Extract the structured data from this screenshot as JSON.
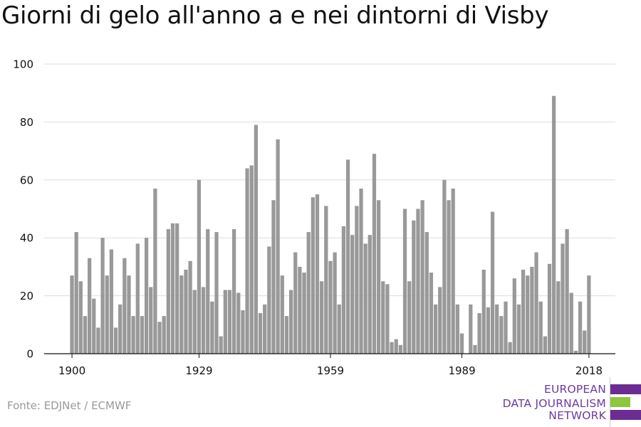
{
  "title": "Giorni di gelo all'anno a e nei dintorni di Visby",
  "source": "Fonte: EDJNet / ECMWF",
  "logo": {
    "lines": [
      "EUROPEAN",
      "DATA JOURNALISM",
      "NETWORK"
    ],
    "colors": [
      "#6c2c91",
      "#8dc63f",
      "#6c2c91"
    ]
  },
  "colors": {
    "bar": "#999999",
    "grid": "#dddddd",
    "axis": "#111111",
    "text": "#111111"
  },
  "chart_data": {
    "type": "bar",
    "title": "Giorni di gelo all'anno a e nei dintorni di Visby",
    "xlabel": "",
    "ylabel": "",
    "ylim": [
      0,
      100
    ],
    "yticks": [
      0,
      20,
      40,
      60,
      80,
      100
    ],
    "xticks": [
      1900,
      1929,
      1959,
      1989,
      2018
    ],
    "xlim": [
      1899.5,
      2018.5
    ],
    "grid": true,
    "x": [
      1900,
      1901,
      1902,
      1903,
      1904,
      1905,
      1906,
      1907,
      1908,
      1909,
      1910,
      1911,
      1912,
      1913,
      1914,
      1915,
      1916,
      1917,
      1918,
      1919,
      1920,
      1921,
      1922,
      1923,
      1924,
      1925,
      1926,
      1927,
      1928,
      1929,
      1930,
      1931,
      1932,
      1933,
      1934,
      1935,
      1936,
      1937,
      1938,
      1939,
      1940,
      1941,
      1942,
      1943,
      1944,
      1945,
      1946,
      1947,
      1948,
      1949,
      1950,
      1951,
      1952,
      1953,
      1954,
      1955,
      1956,
      1957,
      1958,
      1959,
      1960,
      1961,
      1962,
      1963,
      1964,
      1965,
      1966,
      1967,
      1968,
      1969,
      1970,
      1971,
      1972,
      1973,
      1974,
      1975,
      1976,
      1977,
      1978,
      1979,
      1980,
      1981,
      1982,
      1983,
      1984,
      1985,
      1986,
      1987,
      1988,
      1989,
      1990,
      1991,
      1992,
      1993,
      1994,
      1995,
      1996,
      1997,
      1998,
      1999,
      2000,
      2001,
      2002,
      2003,
      2004,
      2005,
      2006,
      2007,
      2008,
      2009,
      2010,
      2011,
      2012,
      2013,
      2014,
      2015,
      2016,
      2017,
      2018
    ],
    "values": [
      27,
      42,
      25,
      13,
      33,
      19,
      9,
      40,
      27,
      36,
      9,
      17,
      33,
      27,
      13,
      38,
      13,
      40,
      23,
      57,
      11,
      13,
      43,
      45,
      45,
      27,
      29,
      32,
      22,
      60,
      23,
      43,
      18,
      42,
      6,
      22,
      22,
      43,
      21,
      15,
      64,
      65,
      79,
      14,
      17,
      37,
      53,
      74,
      27,
      13,
      22,
      35,
      30,
      28,
      42,
      54,
      55,
      25,
      51,
      32,
      35,
      17,
      44,
      67,
      41,
      51,
      57,
      38,
      41,
      69,
      53,
      25,
      24,
      4,
      5,
      3,
      50,
      25,
      46,
      50,
      53,
      42,
      28,
      17,
      23,
      60,
      53,
      57,
      17,
      7,
      0,
      17,
      3,
      14,
      29,
      16,
      49,
      17,
      13,
      18,
      4,
      26,
      17,
      29,
      27,
      30,
      35,
      18,
      6,
      31,
      89,
      25,
      38,
      43,
      21,
      1,
      18,
      8,
      27
    ]
  }
}
